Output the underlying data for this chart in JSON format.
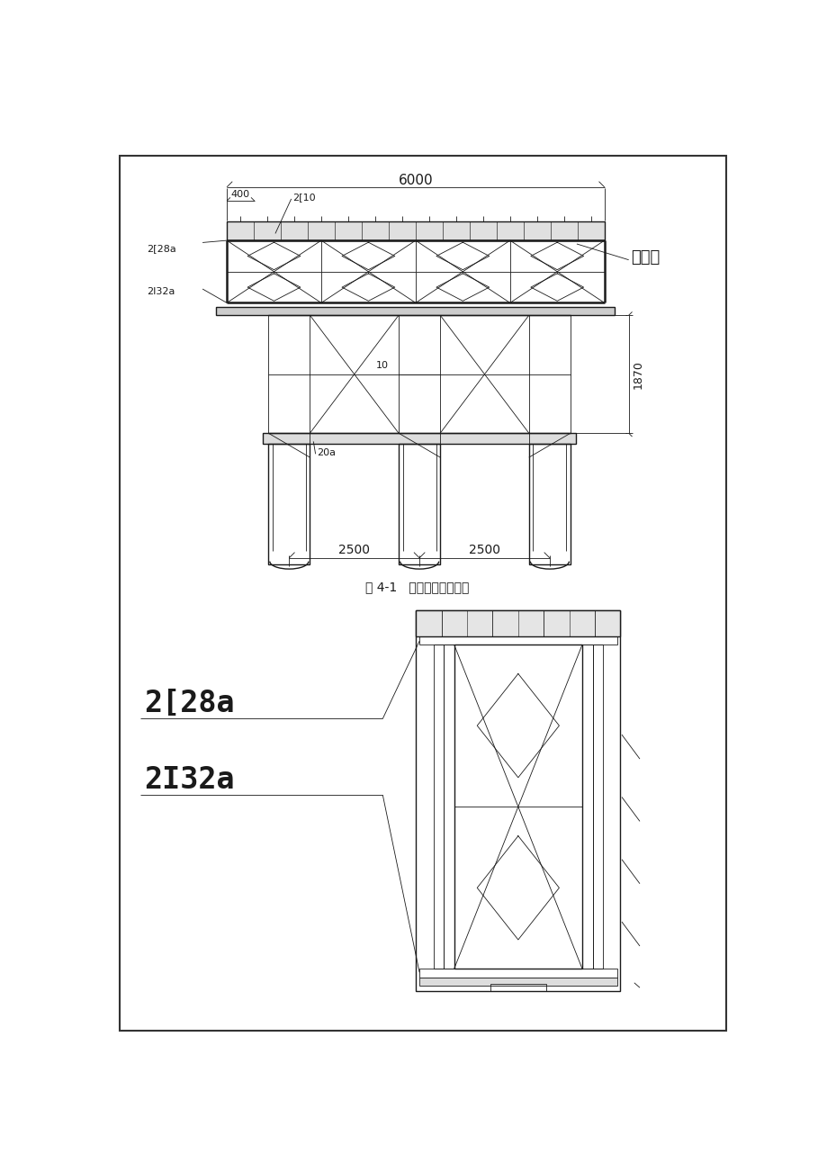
{
  "bg_color": "#ffffff",
  "line_color": "#1a1a1a",
  "fig_width": 9.2,
  "fig_height": 13.02,
  "title1": "图 4-1   销栈桥标准断面图",
  "label_6000": "6000",
  "label_400": "400",
  "label_2I10": "2[10",
  "label_2I28a_small": "2[28a",
  "label_2I32a_small": "2I32a",
  "label_10": "10",
  "label_20a": "20a",
  "label_1870": "1870",
  "label_2500_left": "2500",
  "label_2500_right": "2500",
  "label_beileizi": "贝雷梁",
  "label_2I28a_big": "2[28a",
  "label_2I32a_big": "2I32a"
}
